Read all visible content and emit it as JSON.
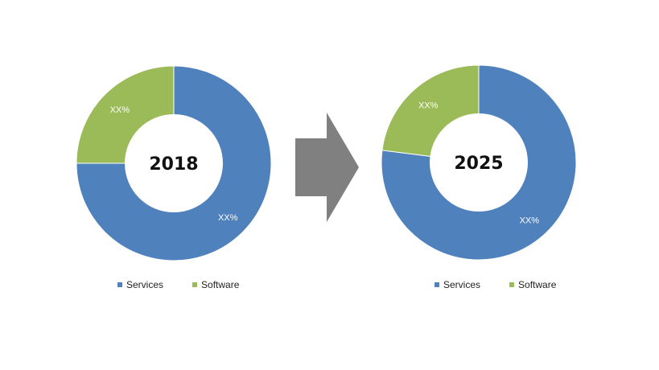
{
  "colors": {
    "services": "#4f81bd",
    "software": "#9bbb59",
    "arrow": "#808080",
    "center": "#ffffff"
  },
  "chart_data": [
    {
      "type": "pie",
      "style": "donut",
      "center_label": "2018",
      "series": [
        {
          "name": "Services",
          "value": 75,
          "label": "XX%"
        },
        {
          "name": "Software",
          "value": 25,
          "label": "XX%"
        }
      ],
      "legend": [
        "Services",
        "Software"
      ],
      "legend_position": "bottom"
    },
    {
      "type": "pie",
      "style": "donut",
      "center_label": "2025",
      "series": [
        {
          "name": "Services",
          "value": 77,
          "label": "XX%"
        },
        {
          "name": "Software",
          "value": 23,
          "label": "XX%"
        }
      ],
      "legend": [
        "Services",
        "Software"
      ],
      "legend_position": "bottom"
    }
  ],
  "transition_icon": "right-arrow-icon"
}
